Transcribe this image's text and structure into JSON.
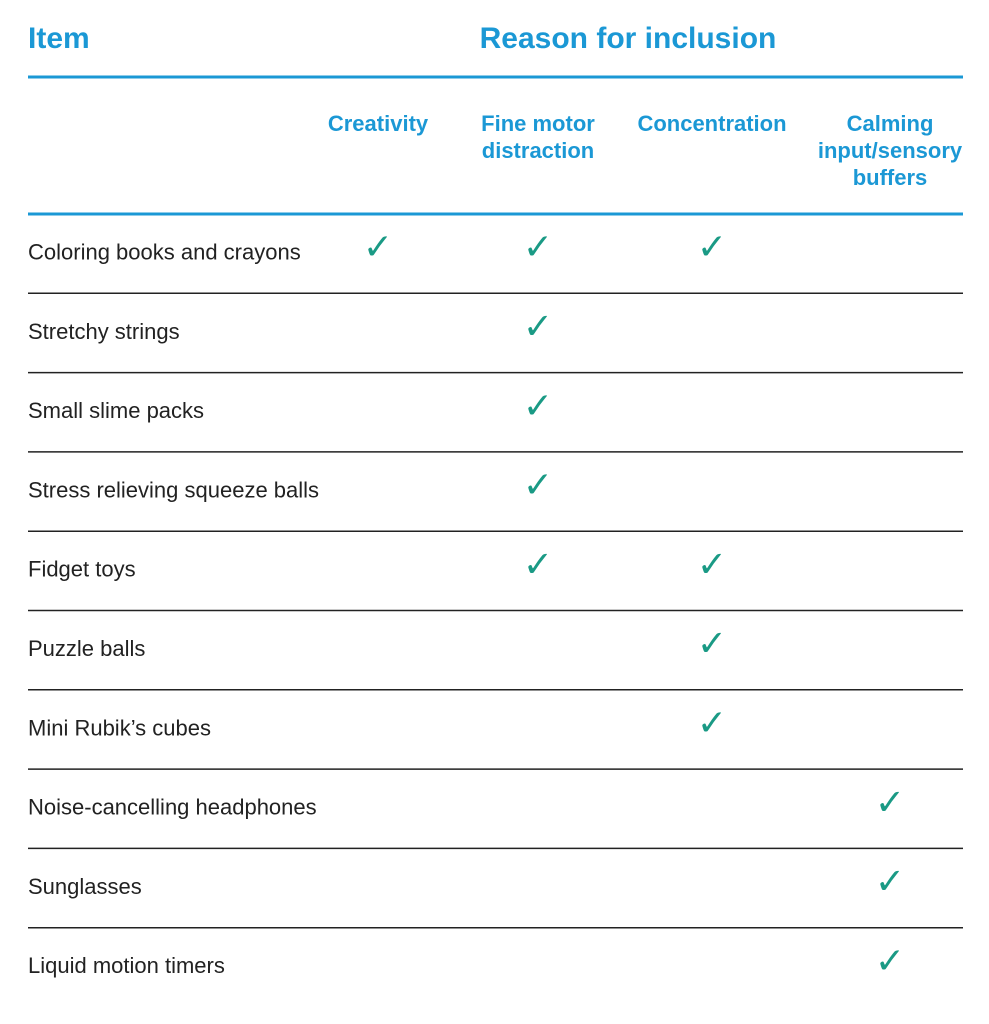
{
  "header": {
    "item": "Item",
    "reason": "Reason for inclusion"
  },
  "columns": [
    [
      "Creativity"
    ],
    [
      "Fine motor",
      "distraction"
    ],
    [
      "Concentration"
    ],
    [
      "Calming",
      "input/sensory",
      "buffers"
    ]
  ],
  "rows": [
    [
      "Coloring books and crayons",
      "✓",
      "✓",
      "✓",
      null
    ],
    [
      "Stretchy strings",
      null,
      "✓",
      null,
      null
    ],
    [
      "Small slime packs",
      null,
      "✓",
      null,
      null
    ],
    [
      "Stress relieving squeeze balls",
      null,
      "✓",
      null,
      null
    ],
    [
      "Fidget toys",
      null,
      "✓",
      "✓",
      null
    ],
    [
      "Puzzle balls",
      null,
      null,
      "✓",
      null
    ],
    [
      "Mini Rubik’s cubes",
      null,
      null,
      "✓",
      null
    ],
    [
      "Noise-cancelling headphones",
      null,
      null,
      null,
      "✓"
    ],
    [
      "Sunglasses",
      null,
      null,
      null,
      "✓"
    ],
    [
      "Liquid motion timers",
      null,
      null,
      null,
      "✓"
    ]
  ]
}
